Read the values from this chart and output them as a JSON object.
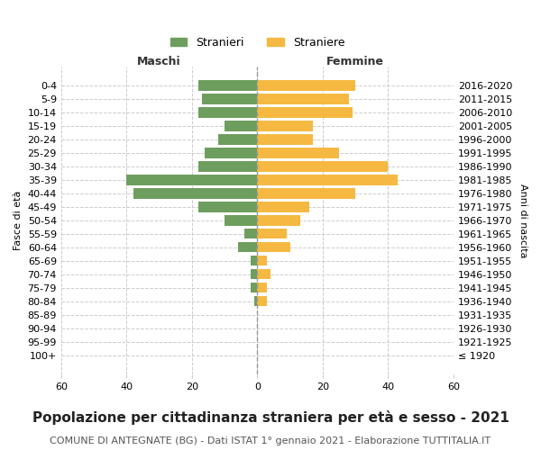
{
  "age_groups": [
    "100+",
    "95-99",
    "90-94",
    "85-89",
    "80-84",
    "75-79",
    "70-74",
    "65-69",
    "60-64",
    "55-59",
    "50-54",
    "45-49",
    "40-44",
    "35-39",
    "30-34",
    "25-29",
    "20-24",
    "15-19",
    "10-14",
    "5-9",
    "0-4"
  ],
  "birth_years": [
    "≤ 1920",
    "1921-1925",
    "1926-1930",
    "1931-1935",
    "1936-1940",
    "1941-1945",
    "1946-1950",
    "1951-1955",
    "1956-1960",
    "1961-1965",
    "1966-1970",
    "1971-1975",
    "1976-1980",
    "1981-1985",
    "1986-1990",
    "1991-1995",
    "1996-2000",
    "2001-2005",
    "2006-2010",
    "2011-2015",
    "2016-2020"
  ],
  "maschi": [
    0,
    0,
    0,
    0,
    1,
    2,
    2,
    2,
    6,
    4,
    10,
    18,
    38,
    40,
    18,
    16,
    12,
    10,
    18,
    17,
    18
  ],
  "femmine": [
    0,
    0,
    0,
    0,
    3,
    3,
    4,
    3,
    10,
    9,
    13,
    16,
    30,
    43,
    40,
    25,
    17,
    17,
    29,
    28,
    30
  ],
  "male_color": "#6e9e5e",
  "female_color": "#f5b942",
  "bar_height": 0.75,
  "xlim": 60,
  "title": "Popolazione per cittadinanza straniera per età e sesso - 2021",
  "subtitle": "COMUNE DI ANTEGNATE (BG) - Dati ISTAT 1° gennaio 2021 - Elaborazione TUTTITALIA.IT",
  "ylabel_left": "Fasce di età",
  "ylabel_right": "Anni di nascita",
  "legend_male": "Stranieri",
  "legend_female": "Straniere",
  "header_left": "Maschi",
  "header_right": "Femmine",
  "grid_color": "#cccccc",
  "bg_color": "#ffffff",
  "title_fontsize": 11,
  "subtitle_fontsize": 8,
  "axis_fontsize": 8,
  "label_fontsize": 8
}
